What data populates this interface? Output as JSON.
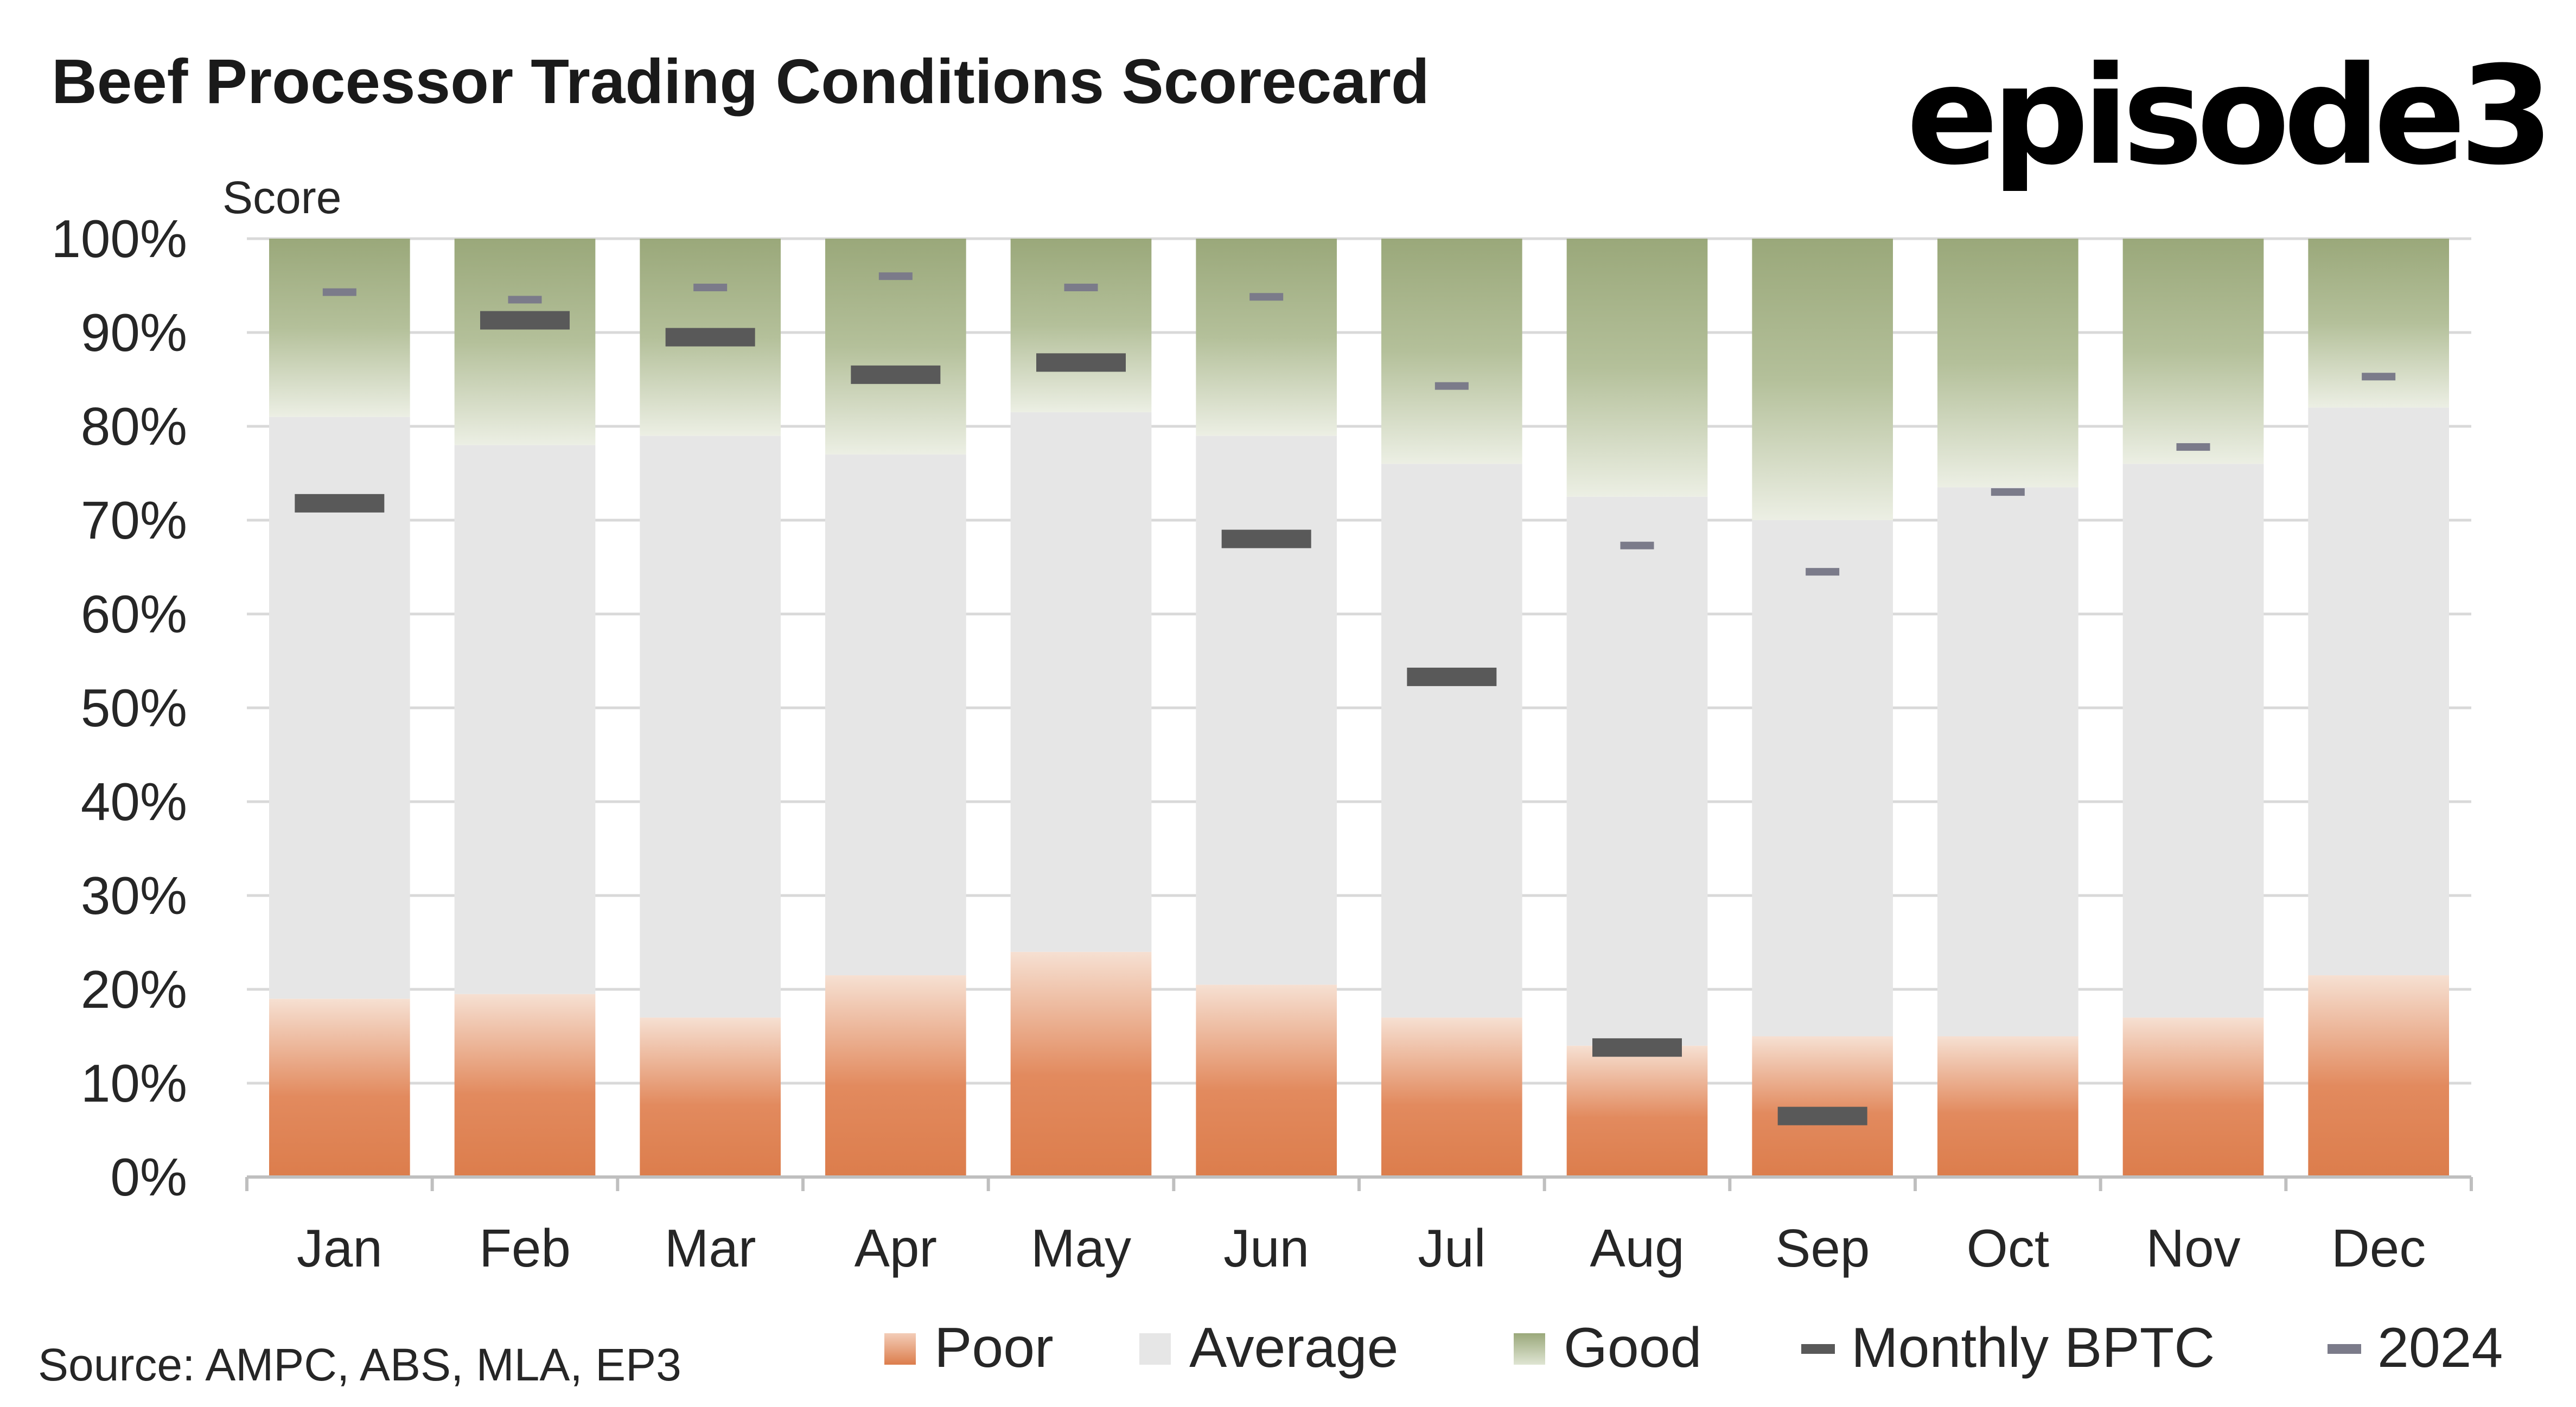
{
  "header": {
    "title": "Beef Processor Trading Conditions Scorecard",
    "brand": "episode3"
  },
  "source": "Source: AMPC, ABS, MLA, EP3",
  "colors": {
    "poor": "#dc7d4c",
    "average": "#e6e6e6",
    "good": "#9aa87a",
    "monthly": "#595959",
    "y2024": "#7b7b8a",
    "grid": "#d9d9d9"
  },
  "chart_data": {
    "type": "bar",
    "stacked": true,
    "title": "Beef Processor Trading Conditions Scorecard",
    "ylabel": "Score",
    "xlabel": "",
    "ylim": [
      0,
      100
    ],
    "yticks": [
      "0%",
      "10%",
      "20%",
      "30%",
      "40%",
      "50%",
      "60%",
      "70%",
      "80%",
      "90%",
      "100%"
    ],
    "categories": [
      "Jan",
      "Feb",
      "Mar",
      "Apr",
      "May",
      "Jun",
      "Jul",
      "Aug",
      "Sep",
      "Oct",
      "Nov",
      "Dec"
    ],
    "series": [
      {
        "name": "Poor",
        "type": "bar",
        "values": [
          19,
          19.5,
          17,
          21.5,
          24,
          20.5,
          17,
          14,
          15,
          15,
          17,
          21.5
        ]
      },
      {
        "name": "Average",
        "type": "bar",
        "values": [
          62,
          58.5,
          62,
          55.5,
          57.5,
          58.5,
          59,
          58.5,
          55,
          58.5,
          59,
          60.5
        ]
      },
      {
        "name": "Good",
        "type": "bar",
        "values": [
          19,
          22,
          21,
          23,
          18.5,
          21,
          24,
          27.5,
          30,
          26.5,
          24,
          18
        ]
      },
      {
        "name": "Monthly BPTC",
        "type": "marker",
        "values": [
          71.8,
          91.3,
          89.5,
          85.5,
          86.8,
          68,
          53.3,
          13.8,
          6.5,
          null,
          null,
          null
        ]
      },
      {
        "name": "2024",
        "type": "marker",
        "values": [
          94.3,
          93.5,
          94.8,
          96,
          94.8,
          93.8,
          84.3,
          67.3,
          64.5,
          73,
          77.8,
          85.3
        ]
      }
    ],
    "legend": {
      "position": "bottom",
      "entries": [
        "Poor",
        "Average",
        "Good",
        "Monthly BPTC",
        "2024"
      ]
    },
    "grid": true
  }
}
